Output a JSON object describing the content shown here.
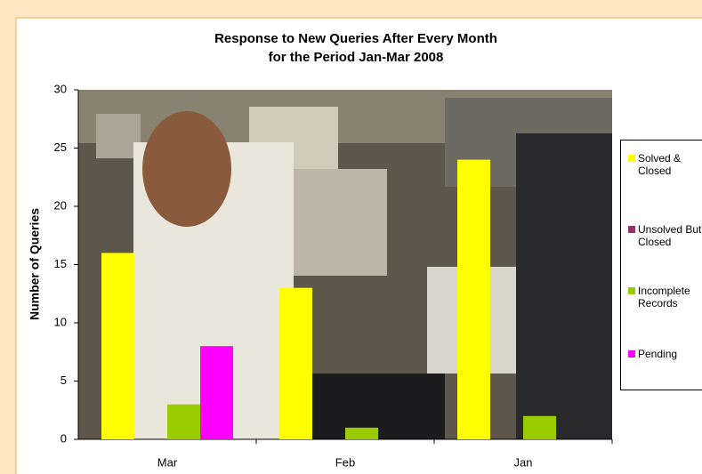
{
  "chart_data": {
    "type": "bar",
    "title": [
      "Response to New Queries After Every Month",
      "for the Period Jan-Mar 2008"
    ],
    "y_label": "Number of Queries",
    "categories": [
      "Mar",
      "Feb",
      "Jan"
    ],
    "series": [
      {
        "name": "Solved & Closed",
        "color": "#ffff00",
        "values": [
          16,
          13,
          24
        ]
      },
      {
        "name": "Unsolved But Closed",
        "color": "#993366",
        "values": [
          0,
          0,
          0
        ]
      },
      {
        "name": "Incomplete Records",
        "color": "#99cc00",
        "values": [
          3,
          1,
          2
        ]
      },
      {
        "name": "Pending",
        "color": "#ff00ff",
        "values": [
          8,
          0,
          0
        ]
      }
    ],
    "ylim": [
      0,
      30
    ],
    "yticks": [
      0,
      5,
      10,
      15,
      20,
      25,
      30
    ],
    "legend": "right"
  }
}
